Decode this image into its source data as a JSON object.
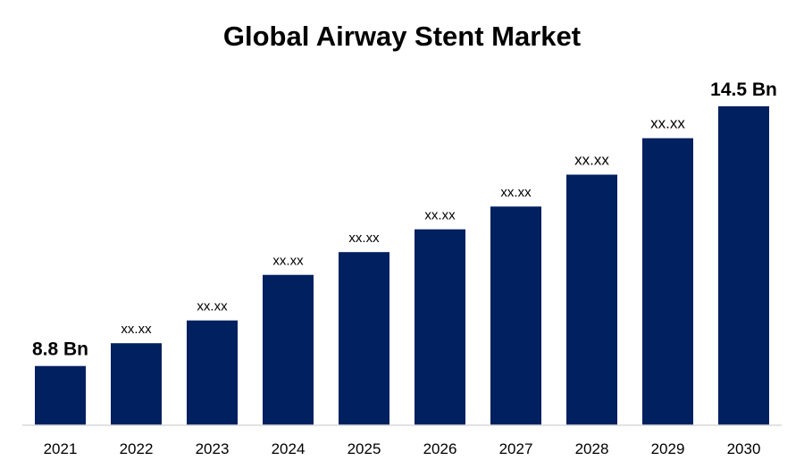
{
  "chart_data": {
    "type": "bar",
    "title": "Global Airway Stent Market",
    "xlabel": "",
    "ylabel": "",
    "categories": [
      "2021",
      "2022",
      "2023",
      "2024",
      "2025",
      "2026",
      "2027",
      "2028",
      "2029",
      "2030"
    ],
    "series": [
      {
        "values": [
          8.8,
          9.3,
          9.8,
          10.8,
          11.3,
          11.8,
          12.3,
          13.0,
          13.8,
          14.5
        ]
      }
    ],
    "data_labels": [
      "8.8 Bn",
      "xx.xx",
      "xx.xx",
      "xx.xx",
      "xx.xx",
      "xx.xx",
      "xx.xx",
      "xx.xx",
      "xx.xx",
      "14.5 Bn"
    ],
    "ylim": [
      7.5,
      14.5
    ],
    "grid": false,
    "legend": "none",
    "bar_color": "#002060",
    "axis_color": "#d9d9d9"
  }
}
